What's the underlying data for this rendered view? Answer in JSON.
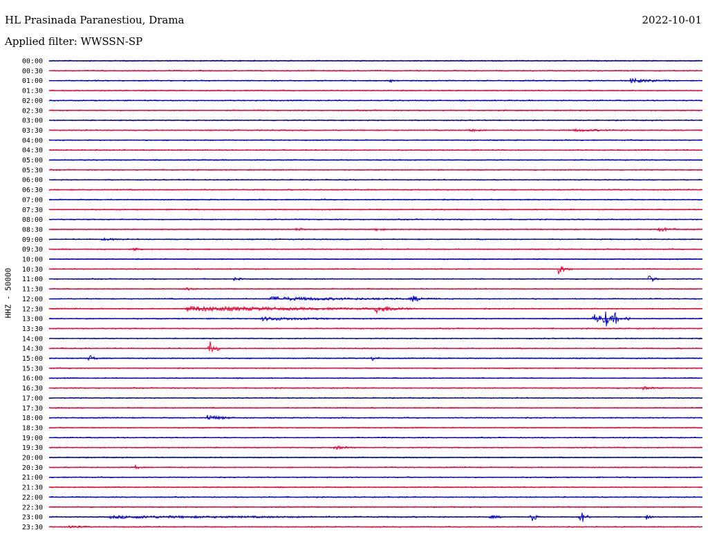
{
  "header": {
    "station": "HL Prasinada Paranestiou, Drama",
    "date": "2022-10-01",
    "filter": "Applied filter: WWSSN-SP"
  },
  "chart_data": {
    "type": "line",
    "ylabel": "HHZ - 50000",
    "trace_colors": [
      "#0000cc",
      "#ee0033"
    ],
    "rows": [
      {
        "time": "00:00"
      },
      {
        "time": "00:30"
      },
      {
        "time": "01:00"
      },
      {
        "time": "01:30"
      },
      {
        "time": "02:00"
      },
      {
        "time": "02:30"
      },
      {
        "time": "03:00"
      },
      {
        "time": "03:30"
      },
      {
        "time": "04:00"
      },
      {
        "time": "04:30"
      },
      {
        "time": "05:00"
      },
      {
        "time": "05:30"
      },
      {
        "time": "06:00"
      },
      {
        "time": "06:30"
      },
      {
        "time": "07:00"
      },
      {
        "time": "07:30"
      },
      {
        "time": "08:00"
      },
      {
        "time": "08:30"
      },
      {
        "time": "09:00"
      },
      {
        "time": "09:30"
      },
      {
        "time": "10:00"
      },
      {
        "time": "10:30"
      },
      {
        "time": "11:00"
      },
      {
        "time": "11:30"
      },
      {
        "time": "12:00"
      },
      {
        "time": "12:30"
      },
      {
        "time": "13:00"
      },
      {
        "time": "13:30"
      },
      {
        "time": "14:00"
      },
      {
        "time": "14:30"
      },
      {
        "time": "15:00"
      },
      {
        "time": "15:30"
      },
      {
        "time": "16:00"
      },
      {
        "time": "16:30"
      },
      {
        "time": "17:00"
      },
      {
        "time": "17:30"
      },
      {
        "time": "18:00"
      },
      {
        "time": "18:30"
      },
      {
        "time": "19:00"
      },
      {
        "time": "19:30"
      },
      {
        "time": "20:00"
      },
      {
        "time": "20:30"
      },
      {
        "time": "21:00"
      },
      {
        "time": "21:30"
      },
      {
        "time": "22:00"
      },
      {
        "time": "22:30"
      },
      {
        "time": "23:00"
      },
      {
        "time": "23:30"
      }
    ]
  }
}
